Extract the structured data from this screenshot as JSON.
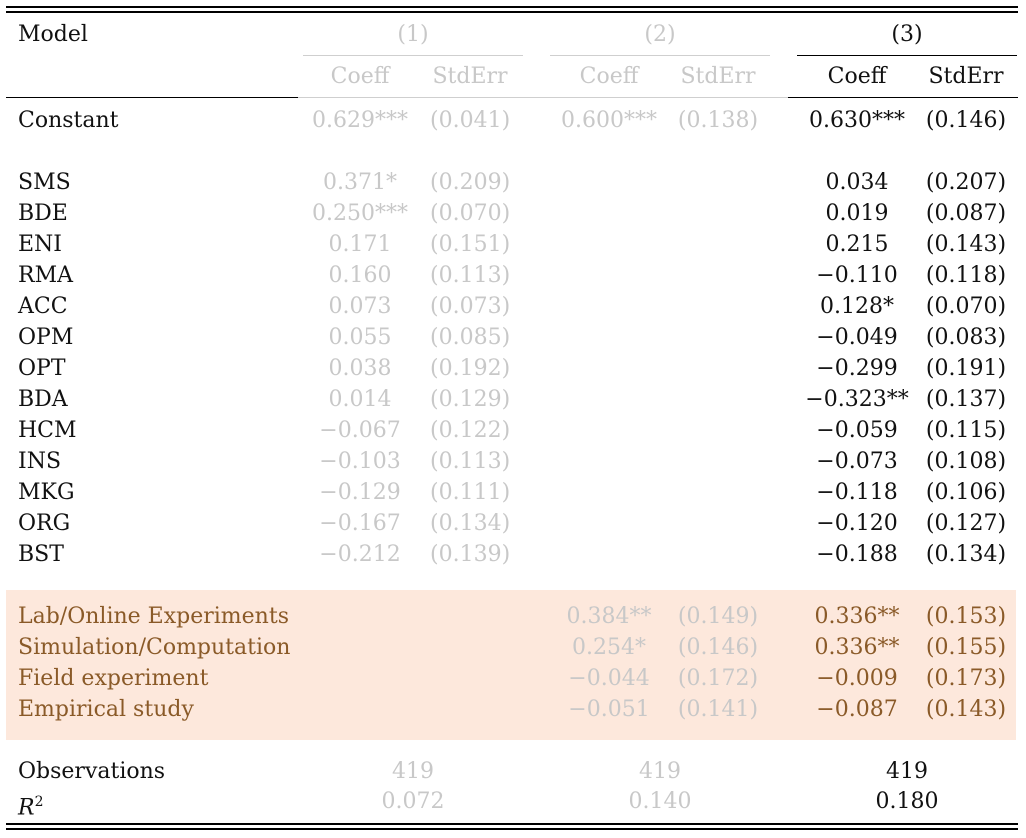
{
  "header": {
    "model_label": "Model",
    "col1": "(1)",
    "col2": "(2)",
    "col3": "(3)",
    "coeff": "Coeff",
    "stderr": "StdErr"
  },
  "rows": [
    {
      "label": "Constant",
      "c1": "0.629***",
      "s1": "(0.041)",
      "c2": "0.600***",
      "s2": "(0.138)",
      "c3": "0.630***",
      "s3": "(0.146)"
    },
    {
      "label": "SMS",
      "c1": "0.371*",
      "s1": "(0.209)",
      "c2": "",
      "s2": "",
      "c3": "0.034",
      "s3": "(0.207)"
    },
    {
      "label": "BDE",
      "c1": "0.250***",
      "s1": "(0.070)",
      "c2": "",
      "s2": "",
      "c3": "0.019",
      "s3": "(0.087)"
    },
    {
      "label": "ENI",
      "c1": "0.171",
      "s1": "(0.151)",
      "c2": "",
      "s2": "",
      "c3": "0.215",
      "s3": "(0.143)"
    },
    {
      "label": "RMA",
      "c1": "0.160",
      "s1": "(0.113)",
      "c2": "",
      "s2": "",
      "c3": "−0.110",
      "s3": "(0.118)"
    },
    {
      "label": "ACC",
      "c1": "0.073",
      "s1": "(0.073)",
      "c2": "",
      "s2": "",
      "c3": "0.128*",
      "s3": "(0.070)"
    },
    {
      "label": "OPM",
      "c1": "0.055",
      "s1": "(0.085)",
      "c2": "",
      "s2": "",
      "c3": "−0.049",
      "s3": "(0.083)"
    },
    {
      "label": "OPT",
      "c1": "0.038",
      "s1": "(0.192)",
      "c2": "",
      "s2": "",
      "c3": "−0.299",
      "s3": "(0.191)"
    },
    {
      "label": "BDA",
      "c1": "0.014",
      "s1": "(0.129)",
      "c2": "",
      "s2": "",
      "c3": "−0.323**",
      "s3": "(0.137)"
    },
    {
      "label": "HCM",
      "c1": "−0.067",
      "s1": "(0.122)",
      "c2": "",
      "s2": "",
      "c3": "−0.059",
      "s3": "(0.115)"
    },
    {
      "label": "INS",
      "c1": "−0.103",
      "s1": "(0.113)",
      "c2": "",
      "s2": "",
      "c3": "−0.073",
      "s3": "(0.108)"
    },
    {
      "label": "MKG",
      "c1": "−0.129",
      "s1": "(0.111)",
      "c2": "",
      "s2": "",
      "c3": "−0.118",
      "s3": "(0.106)"
    },
    {
      "label": "ORG",
      "c1": "−0.167",
      "s1": "(0.134)",
      "c2": "",
      "s2": "",
      "c3": "−0.120",
      "s3": "(0.127)"
    },
    {
      "label": "BST",
      "c1": "−0.212",
      "s1": "(0.139)",
      "c2": "",
      "s2": "",
      "c3": "−0.188",
      "s3": "(0.134)"
    },
    {
      "label": "Lab/Online Experiments",
      "c1": "",
      "s1": "",
      "c2": "0.384**",
      "s2": "(0.149)",
      "c3": "0.336**",
      "s3": "(0.153)"
    },
    {
      "label": "Simulation/Computation",
      "c1": "",
      "s1": "",
      "c2": "0.254*",
      "s2": "(0.146)",
      "c3": "0.336**",
      "s3": "(0.155)"
    },
    {
      "label": "Field experiment",
      "c1": "",
      "s1": "",
      "c2": "−0.044",
      "s2": "(0.172)",
      "c3": "−0.009",
      "s3": "(0.173)"
    },
    {
      "label": "Empirical study",
      "c1": "",
      "s1": "",
      "c2": "−0.051",
      "s2": "(0.141)",
      "c3": "−0.087",
      "s3": "(0.143)"
    }
  ],
  "footer": {
    "obs_label": "Observations",
    "obs1": "419",
    "obs2": "419",
    "obs3": "419",
    "r2_label": "R",
    "r2_sup": "2",
    "r21": "0.072",
    "r22": "0.140",
    "r23": "0.180"
  },
  "colors": {
    "faded": "#c8c8c8",
    "highlight_bg": "#fde8dc",
    "highlight_text": "#8a5a28"
  }
}
